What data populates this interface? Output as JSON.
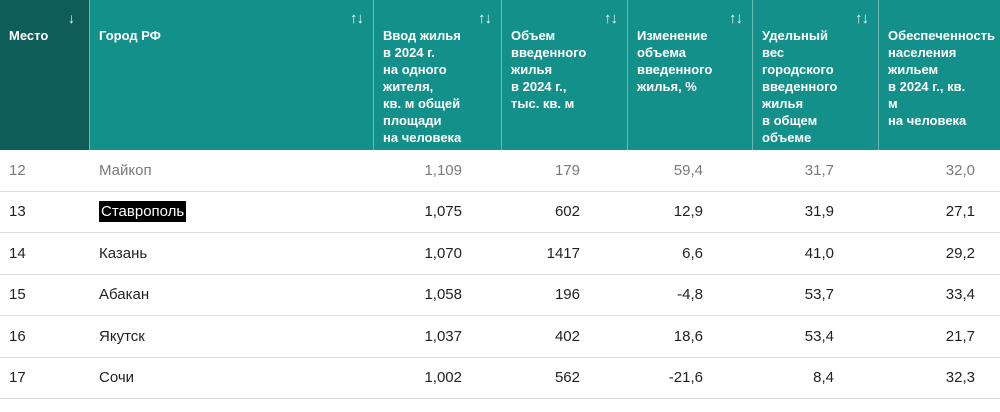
{
  "columns": [
    {
      "label": "Место",
      "sort": "↓"
    },
    {
      "label": "Город РФ",
      "sort": "↑↓"
    },
    {
      "label": "Ввод жилья\nв 2024 г.\nна одного\nжителя,\nкв. м общей\nплощади\nна человека",
      "sort": "↑↓"
    },
    {
      "label": "Объем\nвведенного\nжилья\nв 2024 г.,\nтыс. кв. м",
      "sort": "↑↓"
    },
    {
      "label": "Изменение\nобъема\nвведенного\nжилья, %",
      "sort": "↑↓"
    },
    {
      "label": "Удельный\nвес\nгородского\nвведенного\nжилья\nв общем\nобъеме\nрегиона, %",
      "sort": "↑↓"
    },
    {
      "label": "Обеспеченность\nнаселения\nжильем\nв 2024 г., кв. м\nна человека",
      "sort": ""
    }
  ],
  "rows": [
    [
      "12",
      "Майкоп",
      "1,109",
      "179",
      "59,4",
      "31,7",
      "32,0"
    ],
    [
      "13",
      "Ставрополь",
      "1,075",
      "602",
      "12,9",
      "31,9",
      "27,1"
    ],
    [
      "14",
      "Казань",
      "1,070",
      "1417",
      "6,6",
      "41,0",
      "29,2"
    ],
    [
      "15",
      "Абакан",
      "1,058",
      "196",
      "-4,8",
      "53,7",
      "33,4"
    ],
    [
      "16",
      "Якутск",
      "1,037",
      "402",
      "18,6",
      "53,4",
      "21,7"
    ],
    [
      "17",
      "Сочи",
      "1,002",
      "562",
      "-21,6",
      "8,4",
      "32,3"
    ]
  ],
  "colors": {
    "header_bg": "#14908a",
    "header_first_bg": "#0e5d59",
    "highlight": "#000000"
  },
  "highlighted_row": 1
}
